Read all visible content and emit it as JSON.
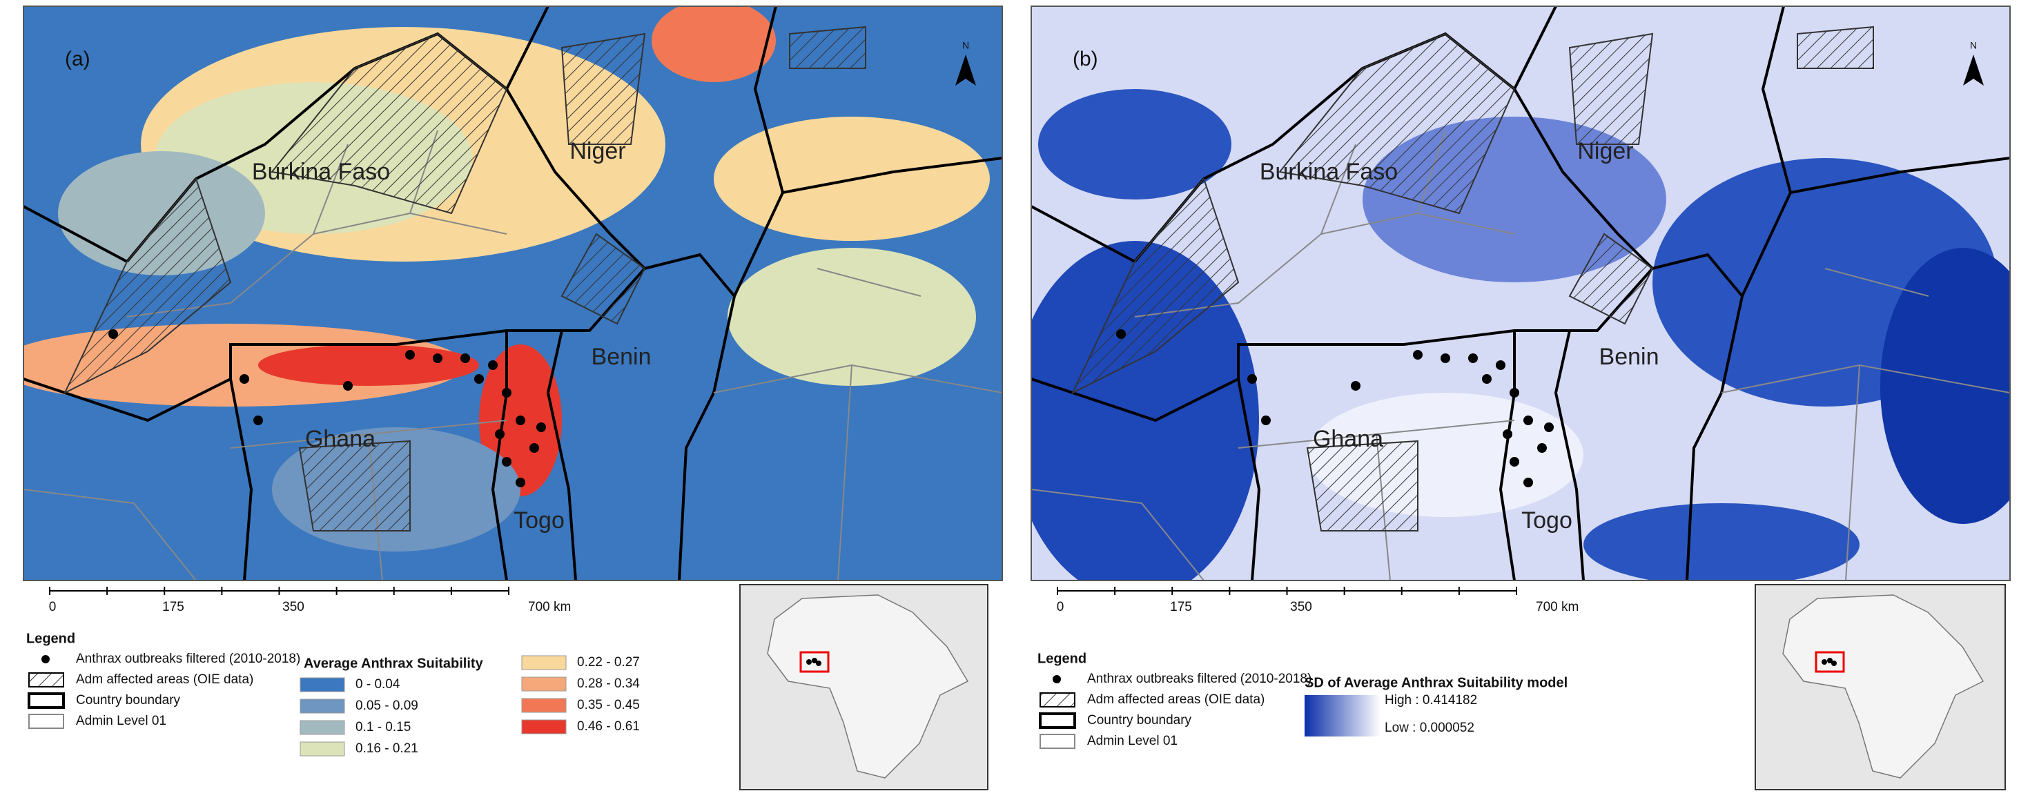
{
  "panels": [
    {
      "label": "(a)",
      "north": "N",
      "countries": [
        "Burkina Faso",
        "Niger",
        "Benin",
        "Ghana",
        "Togo"
      ],
      "scale": [
        "0",
        "175",
        "350",
        "700 km"
      ],
      "legend": {
        "title": "Legend",
        "items": [
          "Anthrax outbreaks filtered (2010-2018)",
          "Adm affected areas (OIE data)",
          "Country boundary",
          "Admin Level 01"
        ],
        "ramp_title": "Average Anthrax Suitability",
        "classes": [
          {
            "label": "0 - 0.04",
            "color": "#3b78bf"
          },
          {
            "label": "0.05 - 0.09",
            "color": "#6f95c1"
          },
          {
            "label": "0.1 - 0.15",
            "color": "#a3b9c0"
          },
          {
            "label": "0.16 - 0.21",
            "color": "#dde3b8"
          },
          {
            "label": "0.22 - 0.27",
            "color": "#f9d89b"
          },
          {
            "label": "0.28 - 0.34",
            "color": "#f7a87a"
          },
          {
            "label": "0.35 - 0.45",
            "color": "#f27855"
          },
          {
            "label": "0.46 - 0.61",
            "color": "#e8382d"
          }
        ]
      }
    },
    {
      "label": "(b)",
      "north": "N",
      "countries": [
        "Burkina Faso",
        "Niger",
        "Benin",
        "Ghana",
        "Togo"
      ],
      "scale": [
        "0",
        "175",
        "350",
        "700 km"
      ],
      "legend": {
        "title": "Legend",
        "items": [
          "Anthrax outbreaks filtered (2010-2018)",
          "Adm affected areas (OIE data)",
          "Country boundary",
          "Admin Level 01"
        ],
        "ramp_title": "SD of Average Anthrax Suitability model",
        "high": "High : 0.414182",
        "low": "Low : 0.000052"
      }
    }
  ]
}
